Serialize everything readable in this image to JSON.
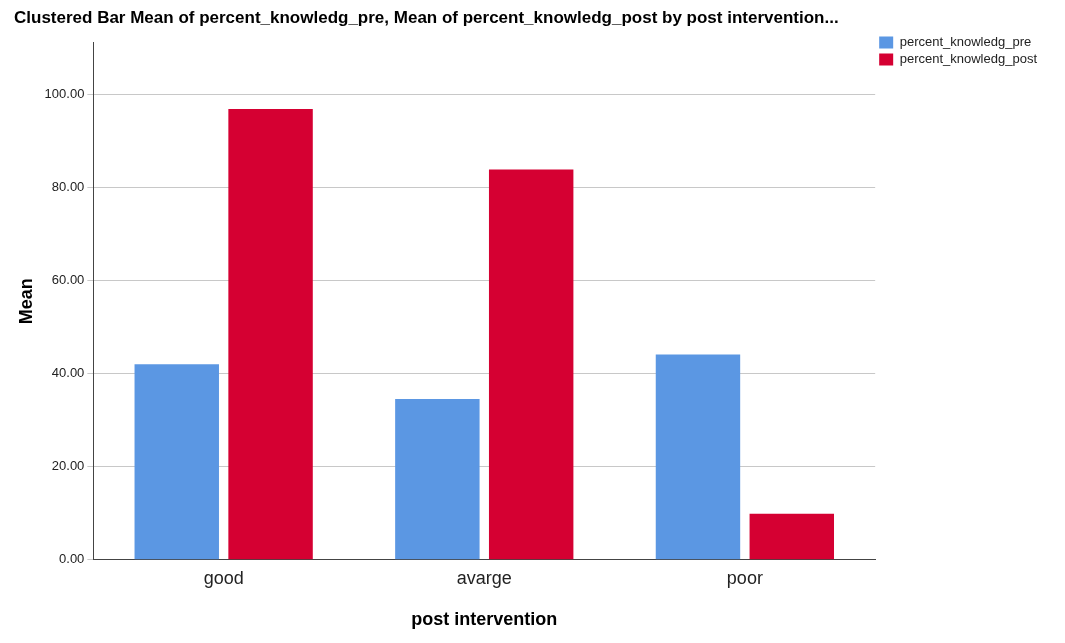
{
  "chart_data": {
    "type": "bar",
    "title": "Clustered Bar Mean of percent_knowledg_pre, Mean of percent_knowledg_post by post intervention...",
    "xlabel": "post intervention",
    "ylabel": "Mean",
    "categories": [
      "good",
      "avarge",
      "poor"
    ],
    "series": [
      {
        "name": "percent_knowledg_pre",
        "color": "#5b97e3",
        "values": [
          42.0,
          34.5,
          44.1
        ]
      },
      {
        "name": "percent_knowledg_post",
        "color": "#d50032",
        "values": [
          96.8,
          83.8,
          9.9
        ]
      }
    ],
    "ylim": [
      0,
      111
    ],
    "yticks": [
      {
        "value": 0,
        "label": "0.00"
      },
      {
        "value": 20,
        "label": "20.00"
      },
      {
        "value": 40,
        "label": "40.00"
      },
      {
        "value": 60,
        "label": "60.00"
      },
      {
        "value": 80,
        "label": "80.00"
      },
      {
        "value": 100,
        "label": "100.00"
      }
    ],
    "grid": "y",
    "legend": "top right"
  }
}
